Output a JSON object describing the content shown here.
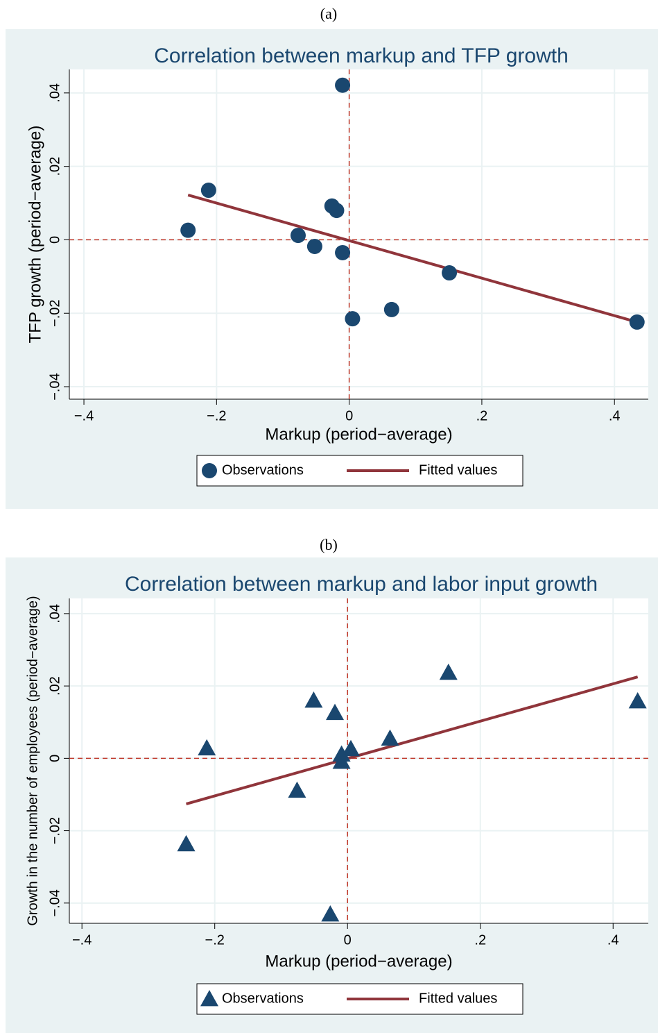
{
  "chart_data": [
    {
      "type": "scatter",
      "panel": "(a)",
      "title": "Correlation between markup and TFP growth",
      "x_label": "Markup (period−average)",
      "y_label": "TFP growth (period−average)",
      "xlim": [
        -0.422,
        0.451
      ],
      "ylim": [
        -0.0434,
        0.0464
      ],
      "xticks": [
        {
          "value": -0.4,
          "label": "−.4"
        },
        {
          "value": -0.2,
          "label": "−.2"
        },
        0,
        {
          "value": 0.2,
          "label": ".2"
        },
        {
          "value": 0.4,
          "label": ".4"
        }
      ],
      "yticks": [
        {
          "value": -0.04,
          "label": "−.04"
        },
        {
          "value": -0.02,
          "label": "−.02"
        },
        0,
        {
          "value": 0.02,
          "label": ".02"
        },
        {
          "value": 0.04,
          "label": ".04"
        }
      ],
      "xline": 0,
      "yline": 0,
      "grid": true,
      "marker": "circle",
      "series": [
        {
          "name": "Observations",
          "kind": "points",
          "color": "#1a476f",
          "x": [
            -0.243,
            -0.212,
            -0.077,
            -0.052,
            -0.026,
            -0.019,
            -0.01,
            -0.01,
            0.005,
            0.064,
            0.151,
            0.434
          ],
          "values": [
            0.0026,
            0.0135,
            0.0012,
            -0.0018,
            0.0092,
            0.008,
            0.0421,
            -0.0035,
            -0.0215,
            -0.019,
            -0.009,
            -0.0224
          ]
        },
        {
          "name": "Fitted values",
          "kind": "line",
          "color": "#90353b",
          "x": [
            -0.243,
            0.434
          ],
          "values": [
            0.0122,
            -0.0224
          ]
        }
      ]
    },
    {
      "type": "scatter",
      "panel": "(b)",
      "title": "Correlation between markup and labor input growth",
      "x_label": "Markup (period−average)",
      "y_label": "Growth in the number of employees (period−average)",
      "xlim": [
        -0.419,
        0.453
      ],
      "ylim": [
        -0.0456,
        0.0442
      ],
      "xticks": [
        {
          "value": -0.4,
          "label": "−.4"
        },
        {
          "value": -0.2,
          "label": "−.2"
        },
        0,
        {
          "value": 0.2,
          "label": ".2"
        },
        {
          "value": 0.4,
          "label": ".4"
        }
      ],
      "yticks": [
        {
          "value": -0.04,
          "label": "−.04"
        },
        {
          "value": -0.02,
          "label": "−.02"
        },
        0,
        {
          "value": 0.02,
          "label": ".02"
        },
        {
          "value": 0.04,
          "label": ".04"
        }
      ],
      "xline": 0,
      "yline": 0,
      "grid": true,
      "marker": "triangle",
      "series": [
        {
          "name": "Observations",
          "kind": "points",
          "color": "#1a476f",
          "x": [
            -0.243,
            -0.212,
            -0.076,
            -0.051,
            -0.026,
            -0.019,
            -0.009,
            -0.009,
            0.005,
            0.064,
            0.152,
            0.437
          ],
          "values": [
            -0.0237,
            0.0028,
            -0.0089,
            0.016,
            -0.0431,
            0.0126,
            0.0011,
            -0.0009,
            0.0026,
            0.0055,
            0.0237,
            0.0158
          ]
        },
        {
          "name": "Fitted values",
          "kind": "line",
          "color": "#90353b",
          "x": [
            -0.243,
            0.437
          ],
          "values": [
            -0.0126,
            0.0225
          ]
        }
      ]
    }
  ]
}
